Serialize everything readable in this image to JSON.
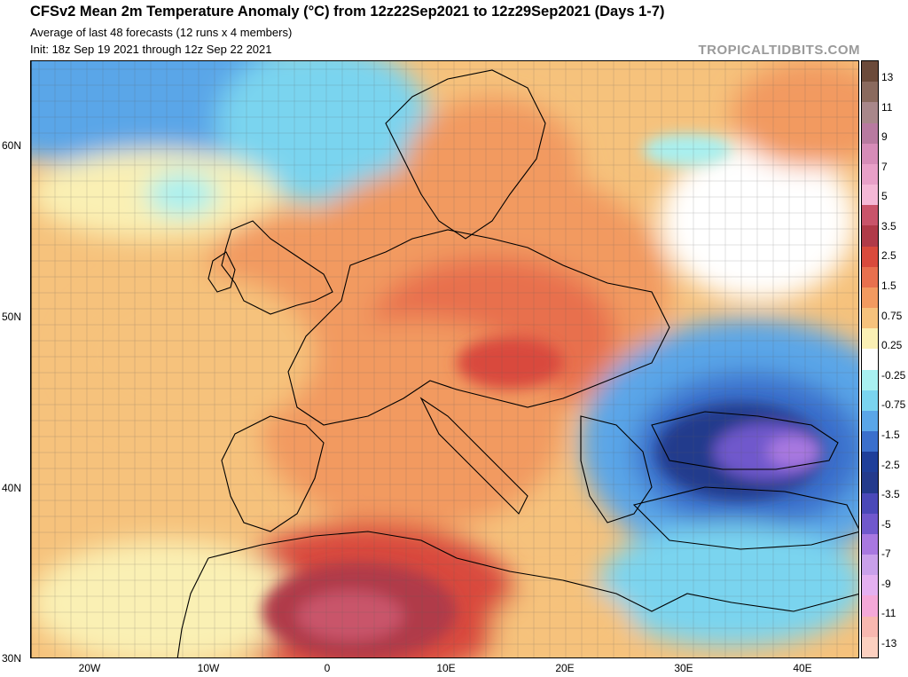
{
  "header": {
    "title": "CFSv2 Mean 2m Temperature Anomaly (°C) from 12z22Sep2021 to 12z29Sep2021 (Days 1-7)",
    "subtitle_line1": "Average of last 48 forecasts (12 runs x 4 members)",
    "subtitle_line2": "Init: 18z Sep 19 2021 through 12z Sep 22 2021",
    "brand": "TROPICALTIDBITS.COM"
  },
  "map": {
    "latitude_labels": [
      "60N",
      "50N",
      "40N",
      "30N"
    ],
    "longitude_labels": [
      "20W",
      "10W",
      "0",
      "10E",
      "20E",
      "30E",
      "40E"
    ]
  },
  "colorbar": {
    "labels": [
      "13",
      "11",
      "9",
      "7",
      "5",
      "3.5",
      "2.5",
      "1.5",
      "0.75",
      "0.25",
      "-0.25",
      "-0.75",
      "-1.5",
      "-2.5",
      "-3.5",
      "-5",
      "-7",
      "-9",
      "-11",
      "-13"
    ],
    "colors": [
      "#6b4a3a",
      "#8a6a5e",
      "#a8878a",
      "#b87aa0",
      "#d68cb8",
      "#e8a0c8",
      "#f4b8d6",
      "#c9546a",
      "#b03a48",
      "#d94a3c",
      "#e8704e",
      "#f29a60",
      "#f6c27c",
      "#faf0b4",
      "#ffffff",
      "#a8f0f0",
      "#7ad4ef",
      "#5aa6e8",
      "#3a6fcc",
      "#1f3f9a",
      "#243a8c",
      "#4a48b8",
      "#7058cc",
      "#a878e0",
      "#c9a0ea",
      "#e4b0f0",
      "#f4a8d8",
      "#f8b8b0",
      "#fcd0c0"
    ]
  }
}
